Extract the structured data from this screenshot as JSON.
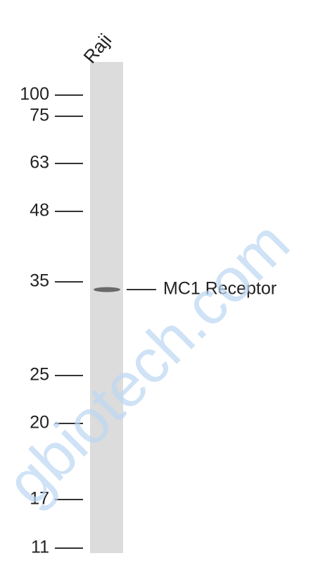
{
  "lane_label": "Raji",
  "markers": [
    "100",
    "75",
    "63",
    "48",
    "35",
    "25",
    "20",
    "17",
    "11"
  ],
  "band_label": "MC1 Receptor",
  "watermark": "gbiotech.com"
}
